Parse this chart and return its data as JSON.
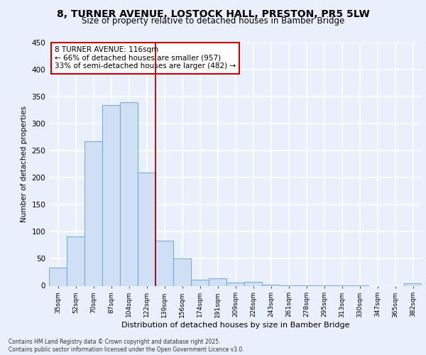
{
  "title1": "8, TURNER AVENUE, LOSTOCK HALL, PRESTON, PR5 5LW",
  "title2": "Size of property relative to detached houses in Bamber Bridge",
  "xlabel": "Distribution of detached houses by size in Bamber Bridge",
  "ylabel": "Number of detached properties",
  "categories": [
    "35sqm",
    "52sqm",
    "70sqm",
    "87sqm",
    "104sqm",
    "122sqm",
    "139sqm",
    "156sqm",
    "174sqm",
    "191sqm",
    "209sqm",
    "226sqm",
    "243sqm",
    "261sqm",
    "278sqm",
    "295sqm",
    "313sqm",
    "330sqm",
    "347sqm",
    "365sqm",
    "382sqm"
  ],
  "values": [
    33,
    91,
    268,
    335,
    340,
    210,
    84,
    51,
    11,
    14,
    6,
    7,
    2,
    1,
    1,
    1,
    1,
    1,
    0,
    0,
    4
  ],
  "bar_color": "#cfe0f5",
  "bar_edge_color": "#7aacdb",
  "vline_x": 5.5,
  "vline_color": "#aa0000",
  "annotation_title": "8 TURNER AVENUE: 116sqm",
  "annotation_line1": "← 66% of detached houses are smaller (957)",
  "annotation_line2": "33% of semi-detached houses are larger (482) →",
  "annotation_box_color": "#ffffff",
  "annotation_box_edge": "#cc0000",
  "ylim": [
    0,
    450
  ],
  "yticks": [
    0,
    50,
    100,
    150,
    200,
    250,
    300,
    350,
    400,
    450
  ],
  "footer1": "Contains HM Land Registry data © Crown copyright and database right 2025.",
  "footer2": "Contains public sector information licensed under the Open Government Licence v3.0.",
  "bg_color": "#eaf0fb",
  "plot_bg_color": "#eaf0fb",
  "grid_color": "#ffffff",
  "title1_fontsize": 10,
  "title2_fontsize": 8.5
}
